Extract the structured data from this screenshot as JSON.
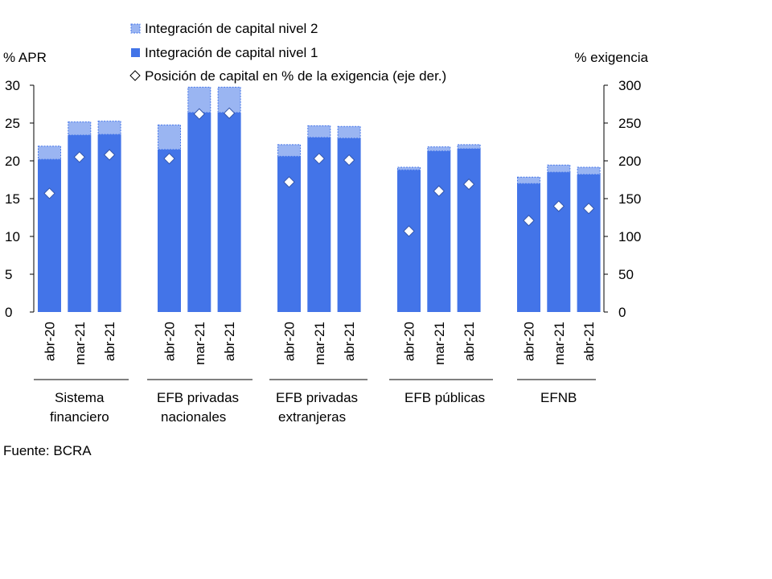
{
  "chart_data": {
    "type": "bar",
    "stacked": true,
    "left_axis": {
      "label": "% APR",
      "ylim": [
        0,
        30
      ],
      "ticks": [
        "0",
        "5",
        "10",
        "15",
        "20",
        "25",
        "30"
      ]
    },
    "right_axis": {
      "label": "% exigencia",
      "ylim": [
        0,
        300
      ],
      "ticks": [
        "0",
        "50",
        "100",
        "150",
        "200",
        "250",
        "300"
      ]
    },
    "legend": {
      "placement": "top",
      "items": [
        {
          "label": "Integración de capital nivel 2",
          "key": "n2"
        },
        {
          "label": "Integración de capital nivel 1",
          "key": "n1"
        },
        {
          "label": "Posición de capital en % de la exigencia (eje der.)",
          "key": "pos"
        }
      ]
    },
    "colors": {
      "n1": "#4374e8",
      "n2": "#9ab5f2",
      "n2_border": "#4374e8",
      "marker_fill": "#ffffff",
      "marker_stroke": "#3355aa"
    },
    "groups": [
      {
        "label_lines": [
          "Sistema",
          "financiero"
        ],
        "bars": [
          {
            "period": "abr-20",
            "n1": 20.2,
            "n2": 1.8,
            "pos": 157
          },
          {
            "period": "mar-21",
            "n1": 23.4,
            "n2": 1.8,
            "pos": 205
          },
          {
            "period": "abr-21",
            "n1": 23.5,
            "n2": 1.8,
            "pos": 208
          }
        ]
      },
      {
        "label_lines": [
          "EFB privadas",
          "nacionales"
        ],
        "bars": [
          {
            "period": "abr-20",
            "n1": 21.5,
            "n2": 3.3,
            "pos": 203
          },
          {
            "period": "mar-21",
            "n1": 26.4,
            "n2": 3.4,
            "pos": 262
          },
          {
            "period": "abr-21",
            "n1": 26.4,
            "n2": 3.4,
            "pos": 263
          }
        ]
      },
      {
        "label_lines": [
          "EFB privadas",
          "extranjeras"
        ],
        "bars": [
          {
            "period": "abr-20",
            "n1": 20.6,
            "n2": 1.6,
            "pos": 172
          },
          {
            "period": "mar-21",
            "n1": 23.1,
            "n2": 1.6,
            "pos": 203
          },
          {
            "period": "abr-21",
            "n1": 23.0,
            "n2": 1.6,
            "pos": 201
          }
        ]
      },
      {
        "label_lines": [
          "EFB públicas"
        ],
        "bars": [
          {
            "period": "abr-20",
            "n1": 18.8,
            "n2": 0.4,
            "pos": 107
          },
          {
            "period": "mar-21",
            "n1": 21.3,
            "n2": 0.6,
            "pos": 160
          },
          {
            "period": "abr-21",
            "n1": 21.6,
            "n2": 0.6,
            "pos": 169
          }
        ]
      },
      {
        "label_lines": [
          "EFNB"
        ],
        "bars": [
          {
            "period": "abr-20",
            "n1": 17.0,
            "n2": 0.9,
            "pos": 121
          },
          {
            "period": "mar-21",
            "n1": 18.5,
            "n2": 1.0,
            "pos": 140
          },
          {
            "period": "abr-21",
            "n1": 18.2,
            "n2": 1.0,
            "pos": 137
          }
        ]
      }
    ]
  },
  "footer": {
    "source": "Fuente: BCRA"
  }
}
